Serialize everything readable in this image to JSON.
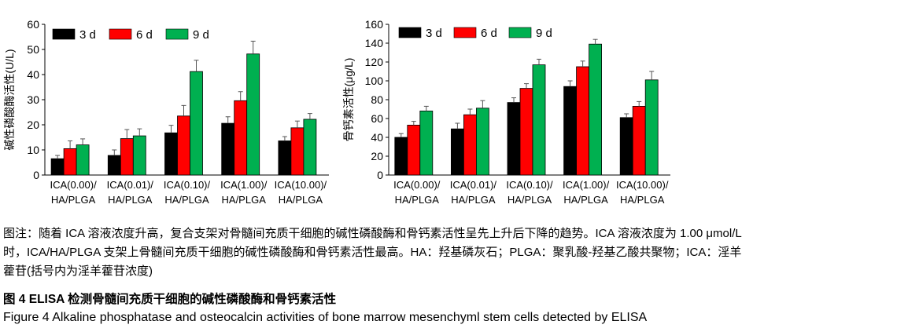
{
  "legend_labels": [
    "3 d",
    "6 d",
    "9 d"
  ],
  "colors": {
    "3 d": "#000000",
    "6 d": "#ff0000",
    "9 d": "#00b050"
  },
  "chart_data": [
    {
      "type": "bar",
      "ylabel": "碱性磷酸酶活性(U/L)",
      "ylim": [
        0,
        60
      ],
      "yticks": [
        0,
        10,
        20,
        30,
        40,
        50,
        60
      ],
      "categories": [
        [
          "ICA(0.00)/",
          "HA/PLGA"
        ],
        [
          "ICA(0.01)/",
          "HA/PLGA"
        ],
        [
          "ICA(0.10)/",
          "HA/PLGA"
        ],
        [
          "ICA(1.00)/",
          "HA/PLGA"
        ],
        [
          "ICA(10.00)/",
          "HA/PLGA"
        ]
      ],
      "series": [
        {
          "name": "3 d",
          "values": [
            6.5,
            7.8,
            16.8,
            20.6,
            13.6
          ],
          "errors": [
            1.3,
            2.2,
            3.0,
            2.6,
            1.7
          ]
        },
        {
          "name": "6 d",
          "values": [
            10.5,
            14.5,
            23.5,
            29.6,
            18.8
          ],
          "errors": [
            3.1,
            3.6,
            4.2,
            3.6,
            2.7
          ]
        },
        {
          "name": "9 d",
          "values": [
            12.0,
            15.6,
            41.2,
            48.2,
            22.2
          ],
          "errors": [
            2.4,
            2.8,
            4.5,
            5.1,
            2.3
          ]
        }
      ],
      "legend_position": "top-left",
      "grid": false
    },
    {
      "type": "bar",
      "ylabel": "骨钙素活性(μg/L)",
      "ylim": [
        0,
        160
      ],
      "yticks": [
        0,
        20,
        40,
        60,
        80,
        100,
        120,
        140,
        160
      ],
      "categories": [
        [
          "ICA(0.00)/",
          "HA/PLGA"
        ],
        [
          "ICA(0.01)/",
          "HA/PLGA"
        ],
        [
          "ICA(0.10)/",
          "HA/PLGA"
        ],
        [
          "ICA(1.00)/",
          "HA/PLGA"
        ],
        [
          "ICA(10.00)/",
          "HA/PLGA"
        ]
      ],
      "series": [
        {
          "name": "3 d",
          "values": [
            40,
            49,
            77,
            94,
            61
          ],
          "errors": [
            4,
            6,
            5,
            6,
            4
          ]
        },
        {
          "name": "6 d",
          "values": [
            53,
            64,
            92,
            115,
            73
          ],
          "errors": [
            4,
            6,
            5,
            6,
            5
          ]
        },
        {
          "name": "9 d",
          "values": [
            68,
            71,
            117,
            139,
            101
          ],
          "errors": [
            5,
            8,
            6,
            5,
            9
          ]
        }
      ],
      "legend_position": "top-left",
      "grid": false
    }
  ],
  "caption": {
    "note_lines": [
      "图注：随着 ICA 溶液浓度升高，复合支架对骨髓间充质干细胞的碱性磷酸酶和骨钙素活性呈先上升后下降的趋势。ICA 溶液浓度为 1.00 μmol/L",
      "时，ICA/HA/PLGA 支架上骨髓间充质干细胞的碱性磷酸酶和骨钙素活性最高。HA：羟基磷灰石；PLGA：聚乳酸-羟基乙酸共聚物；ICA：淫羊",
      "藿苷(括号内为淫羊藿苷浓度)"
    ],
    "figure_cn": "图 4   ELISA 检测骨髓间充质干细胞的碱性磷酸酶和骨钙素活性",
    "figure_en": "Figure 4   Alkaline phosphatase and osteocalcin activities of bone marrow mesenchyml stem cells detected by ELISA"
  }
}
